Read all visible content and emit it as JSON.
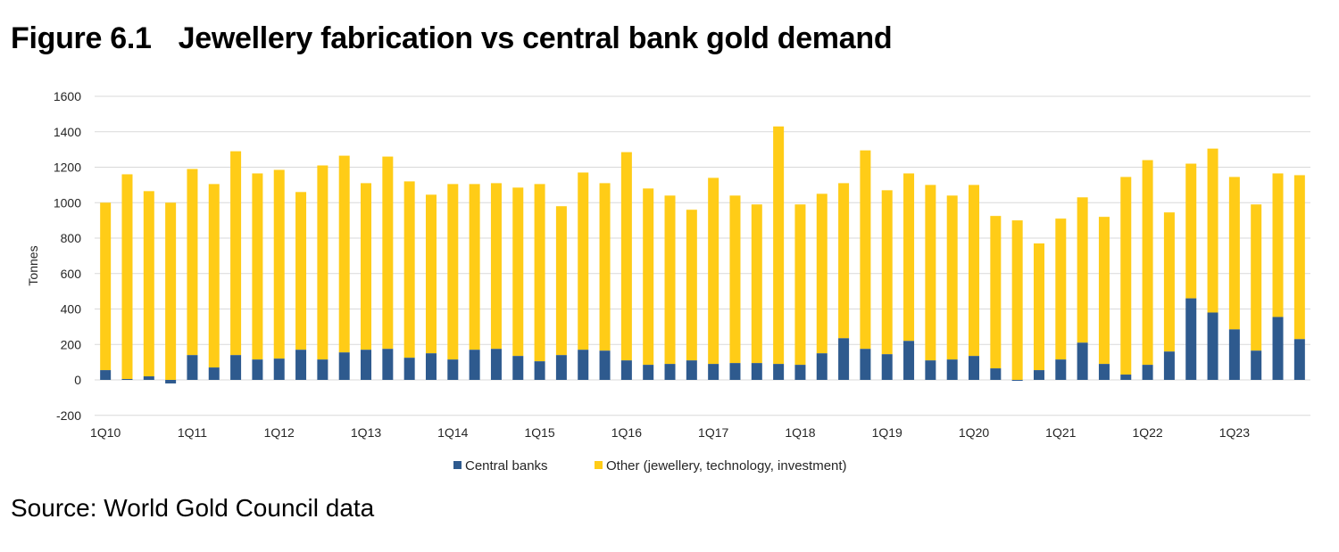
{
  "figure": {
    "number": "Figure 6.1",
    "title": "Jewellery fabrication vs central bank gold demand",
    "source": "Source: World Gold Council data"
  },
  "colors": {
    "central_banks": "#2E5A8E",
    "other": "#FFCC17",
    "grid": "#D9D9D9"
  },
  "chart_data": {
    "type": "bar",
    "stacked": true,
    "title": "Jewellery fabrication vs central bank gold demand",
    "xlabel": "",
    "ylabel": "Tonnes",
    "ylim": [
      -200,
      1600
    ],
    "yticks": [
      -200,
      0,
      200,
      400,
      600,
      800,
      1000,
      1200,
      1400,
      1600
    ],
    "grid": true,
    "legend_position": "bottom",
    "categories": [
      "1Q10",
      "2Q10",
      "3Q10",
      "4Q10",
      "1Q11",
      "2Q11",
      "3Q11",
      "4Q11",
      "1Q12",
      "2Q12",
      "3Q12",
      "4Q12",
      "1Q13",
      "2Q13",
      "3Q13",
      "4Q13",
      "1Q14",
      "2Q14",
      "3Q14",
      "4Q14",
      "1Q15",
      "2Q15",
      "3Q15",
      "4Q15",
      "1Q16",
      "2Q16",
      "3Q16",
      "4Q16",
      "1Q17",
      "2Q17",
      "3Q17",
      "4Q17",
      "1Q18",
      "2Q18",
      "3Q18",
      "4Q18",
      "1Q19",
      "2Q19",
      "3Q19",
      "4Q19",
      "1Q20",
      "2Q20",
      "3Q20",
      "4Q20",
      "1Q21",
      "2Q21",
      "3Q21",
      "4Q21",
      "1Q22",
      "2Q22",
      "3Q22",
      "4Q22",
      "1Q23",
      "2Q23",
      "3Q23",
      "4Q23"
    ],
    "xtick_labels": [
      "1Q10",
      "1Q11",
      "1Q12",
      "1Q13",
      "1Q14",
      "1Q15",
      "1Q16",
      "1Q17",
      "1Q18",
      "1Q19",
      "1Q20",
      "1Q21",
      "1Q22",
      "1Q23"
    ],
    "series": [
      {
        "name": "Central banks",
        "values": [
          55,
          5,
          20,
          -20,
          140,
          70,
          140,
          115,
          120,
          170,
          115,
          155,
          170,
          175,
          125,
          150,
          115,
          170,
          175,
          135,
          105,
          140,
          170,
          165,
          110,
          85,
          90,
          110,
          90,
          95,
          95,
          90,
          85,
          150,
          235,
          175,
          145,
          220,
          110,
          115,
          135,
          65,
          -5,
          55,
          115,
          210,
          90,
          30,
          85,
          160,
          460,
          380,
          285,
          165,
          355,
          230
        ]
      },
      {
        "name": "Other (jewellery, technology, investment)",
        "values": [
          945,
          1155,
          1045,
          1000,
          1050,
          1035,
          1150,
          1050,
          1065,
          890,
          1095,
          1110,
          940,
          1085,
          995,
          895,
          990,
          935,
          935,
          950,
          1000,
          840,
          1000,
          945,
          1175,
          995,
          950,
          850,
          1050,
          945,
          895,
          1340,
          905,
          900,
          875,
          1120,
          925,
          945,
          990,
          925,
          965,
          860,
          900,
          715,
          795,
          820,
          830,
          1115,
          1155,
          785,
          760,
          925,
          860,
          825,
          810,
          925
        ]
      }
    ]
  }
}
